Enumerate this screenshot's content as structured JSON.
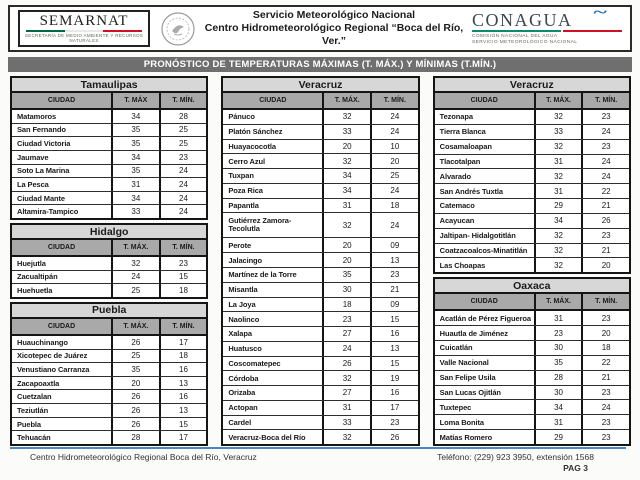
{
  "header": {
    "semarnat": {
      "name": "SEMARNAT",
      "subtitle": "SECRETARÍA DE MEDIO AMBIENTE Y RECURSOS NATURALES"
    },
    "center": {
      "line1": "Servicio Meteorológico Nacional",
      "line2": "Centro Hidrometeorológico Regional “Boca del Río, Ver.”"
    },
    "conagua": {
      "name": "CONAGUA",
      "subtitle1": "COMISIÓN NACIONAL DEL AGUA",
      "subtitle2": "SERVICIO METEOROLÓGICO NACIONAL"
    }
  },
  "title_bar": "PRONÓSTICO DE TEMPERATURAS MÁXIMAS (T. MÁX.) Y MÍNIMAS (T.MÍN.)",
  "columns": [
    [
      {
        "state": "Tamaulipas",
        "headers": [
          "CIUDAD",
          "T. MÁX",
          "T. MÍN."
        ],
        "rows": [
          {
            "city": "Matamoros",
            "tmax": "34",
            "tmin": "28"
          },
          {
            "city": "San Fernando",
            "tmax": "35",
            "tmin": "25"
          },
          {
            "city": "Ciudad Victoria",
            "tmax": "35",
            "tmin": "25"
          },
          {
            "city": "Jaumave",
            "tmax": "34",
            "tmin": "23"
          },
          {
            "city": "Soto La Marina",
            "tmax": "35",
            "tmin": "24"
          },
          {
            "city": "La Pesca",
            "tmax": "31",
            "tmin": "24"
          },
          {
            "city": "Ciudad Mante",
            "tmax": "34",
            "tmin": "24"
          },
          {
            "city": "Altamira-Tampico",
            "tmax": "33",
            "tmin": "24"
          }
        ]
      },
      {
        "state": "Hidalgo",
        "headers": [
          "CIUDAD",
          "T. MÁX.",
          "T. MÍN."
        ],
        "rows": [
          {
            "city": "Huejutla",
            "tmax": "32",
            "tmin": "23"
          },
          {
            "city": "Zacualtipán",
            "tmax": "24",
            "tmin": "15"
          },
          {
            "city": "Huehuetla",
            "tmax": "25",
            "tmin": "18"
          }
        ]
      },
      {
        "state": "Puebla",
        "headers": [
          "CIUDAD",
          "T. MÁX.",
          "T. MÍN."
        ],
        "rows": [
          {
            "city": "Huauchinango",
            "tmax": "26",
            "tmin": "17"
          },
          {
            "city": "Xicotepec de Juárez",
            "tmax": "25",
            "tmin": "18"
          },
          {
            "city": "Venustiano Carranza",
            "tmax": "35",
            "tmin": "16"
          },
          {
            "city": "Zacapoaxtla",
            "tmax": "20",
            "tmin": "13"
          },
          {
            "city": "Cuetzalan",
            "tmax": "26",
            "tmin": "16"
          },
          {
            "city": "Teziutlán",
            "tmax": "26",
            "tmin": "13"
          },
          {
            "city": "Puebla",
            "tmax": "26",
            "tmin": "15"
          },
          {
            "city": "Tehuacán",
            "tmax": "28",
            "tmin": "17"
          }
        ]
      }
    ],
    [
      {
        "state": "Veracruz",
        "headers": [
          "CIUDAD",
          "T. MÁX.",
          "T. MÍN."
        ],
        "rows": [
          {
            "city": "Pánuco",
            "tmax": "32",
            "tmin": "24"
          },
          {
            "city": "Platón Sánchez",
            "tmax": "33",
            "tmin": "24"
          },
          {
            "city": "Huayacocotla",
            "tmax": "20",
            "tmin": "10"
          },
          {
            "city": "Cerro Azul",
            "tmax": "32",
            "tmin": "20"
          },
          {
            "city": "Tuxpan",
            "tmax": "34",
            "tmin": "25"
          },
          {
            "city": "Poza Rica",
            "tmax": "34",
            "tmin": "24"
          },
          {
            "city": "Papantla",
            "tmax": "31",
            "tmin": "18"
          },
          {
            "city": "Gutiérrez Zamora-Tecolutla",
            "tmax": "32",
            "tmin": "24",
            "wrap": true
          },
          {
            "city": "Perote",
            "tmax": "20",
            "tmin": "09"
          },
          {
            "city": "Jalacingo",
            "tmax": "20",
            "tmin": "13"
          },
          {
            "city": "Martínez de la Torre",
            "tmax": "35",
            "tmin": "23"
          },
          {
            "city": "Misantla",
            "tmax": "30",
            "tmin": "21"
          },
          {
            "city": "La Joya",
            "tmax": "18",
            "tmin": "09"
          },
          {
            "city": "Naolinco",
            "tmax": "23",
            "tmin": "15"
          },
          {
            "city": "Xalapa",
            "tmax": "27",
            "tmin": "16"
          },
          {
            "city": "Huatusco",
            "tmax": "24",
            "tmin": "13"
          },
          {
            "city": "Coscomatepec",
            "tmax": "26",
            "tmin": "15"
          },
          {
            "city": "Córdoba",
            "tmax": "32",
            "tmin": "19"
          },
          {
            "city": "Orizaba",
            "tmax": "27",
            "tmin": "16"
          },
          {
            "city": "Actopan",
            "tmax": "31",
            "tmin": "17"
          },
          {
            "city": "Cardel",
            "tmax": "33",
            "tmin": "23"
          },
          {
            "city": "Veracruz-Boca del Río",
            "tmax": "32",
            "tmin": "26"
          }
        ]
      }
    ],
    [
      {
        "state": "Veracruz",
        "headers": [
          "CIUDAD",
          "T. MÁX.",
          "T. MÍN."
        ],
        "rows": [
          {
            "city": "Tezonapa",
            "tmax": "32",
            "tmin": "23"
          },
          {
            "city": "Tierra Blanca",
            "tmax": "33",
            "tmin": "24"
          },
          {
            "city": "Cosamaloapan",
            "tmax": "32",
            "tmin": "23"
          },
          {
            "city": "Tlacotalpan",
            "tmax": "31",
            "tmin": "24"
          },
          {
            "city": "Alvarado",
            "tmax": "32",
            "tmin": "24"
          },
          {
            "city": "San Andrés Tuxtla",
            "tmax": "31",
            "tmin": "22"
          },
          {
            "city": "Catemaco",
            "tmax": "29",
            "tmin": "21"
          },
          {
            "city": "Acayucan",
            "tmax": "34",
            "tmin": "26"
          },
          {
            "city": "Jaltipan- Hidalgotitlán",
            "tmax": "32",
            "tmin": "23"
          },
          {
            "city": "Coatzacoalcos-Minatitlán",
            "tmax": "32",
            "tmin": "21"
          },
          {
            "city": "Las Choapas",
            "tmax": "32",
            "tmin": "20"
          }
        ]
      },
      {
        "state": "Oaxaca",
        "headers": [
          "CIUDAD",
          "T. MÁX.",
          "T. MÍN."
        ],
        "rows": [
          {
            "city": "Acatlán de Pérez Figueroa",
            "tmax": "31",
            "tmin": "23"
          },
          {
            "city": "Huautla de Jiménez",
            "tmax": "23",
            "tmin": "20"
          },
          {
            "city": "Cuicatlán",
            "tmax": "30",
            "tmin": "18"
          },
          {
            "city": "Valle Nacional",
            "tmax": "35",
            "tmin": "22"
          },
          {
            "city": "San Felipe Usila",
            "tmax": "28",
            "tmin": "21"
          },
          {
            "city": "San Lucas Ojitlán",
            "tmax": "30",
            "tmin": "23"
          },
          {
            "city": "Tuxtepec",
            "tmax": "34",
            "tmin": "24"
          },
          {
            "city": "Loma Bonita",
            "tmax": "31",
            "tmin": "23"
          },
          {
            "city": "Matías Romero",
            "tmax": "29",
            "tmin": "23"
          }
        ]
      }
    ]
  ],
  "footer": {
    "left": "Centro Hidrometeorológico Regional Boca del Río, Veracruz",
    "phone": "Teléfono: (229) 923 3950, extensión 1568",
    "page": "PAG 3"
  },
  "colors": {
    "title_bar_bg": "#6f6f6f",
    "state_header_bg": "#d7d7d7",
    "column_header_bg": "#a9a9a9",
    "footer_rule_blue": "#4b86c0",
    "semarnat_green": "#006847",
    "semarnat_red": "#ce1126",
    "conagua_blue": "#1f6cb5"
  }
}
